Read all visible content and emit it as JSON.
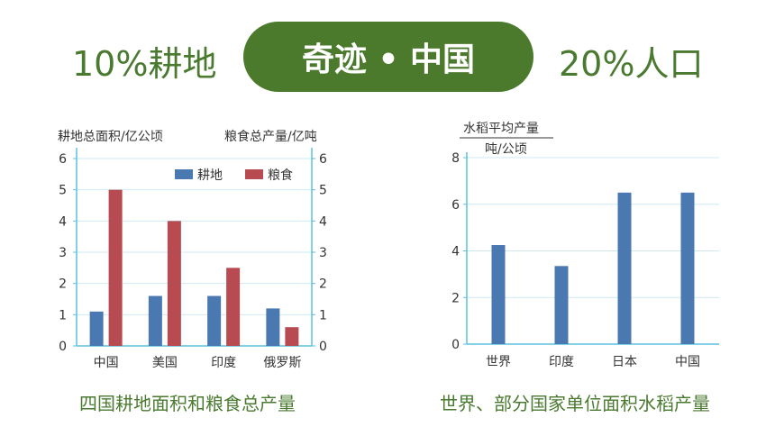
{
  "header": {
    "left": "10%耕地",
    "title": "奇迹 • 中国",
    "right": "20%人口"
  },
  "colors": {
    "green": "#4b7a2c",
    "farmland": "#4a78b0",
    "grain": "#b84a52",
    "axis": "#5bc0de"
  },
  "chart_data": [
    {
      "type": "bar",
      "caption": "四国耕地面积和粮食总产量",
      "ylabel_left": "耕地总面积/亿公顷",
      "ylabel_right": "粮食总产量/亿吨",
      "categories": [
        "中国",
        "美国",
        "印度",
        "俄罗斯"
      ],
      "series": [
        {
          "name": "耕地",
          "values": [
            1.1,
            1.6,
            1.6,
            1.2
          ]
        },
        {
          "name": "粮食",
          "values": [
            5.0,
            4.0,
            2.5,
            0.6
          ]
        }
      ],
      "ylim": [
        0,
        6
      ],
      "yticks": [
        0,
        1,
        2,
        3,
        4,
        5,
        6
      ],
      "legend": "top-right",
      "grid": true
    },
    {
      "type": "bar",
      "caption": "世界、部分国家单位面积水稻产量",
      "ylabel_top": "水稻平均产量",
      "ylabel_bottom": "吨/公顷",
      "categories": [
        "世界",
        "印度",
        "日本",
        "中国"
      ],
      "values": [
        4.25,
        3.35,
        6.5,
        6.5
      ],
      "ylim": [
        0,
        8
      ],
      "yticks": [
        0,
        2,
        4,
        6,
        8
      ],
      "grid": true
    }
  ]
}
